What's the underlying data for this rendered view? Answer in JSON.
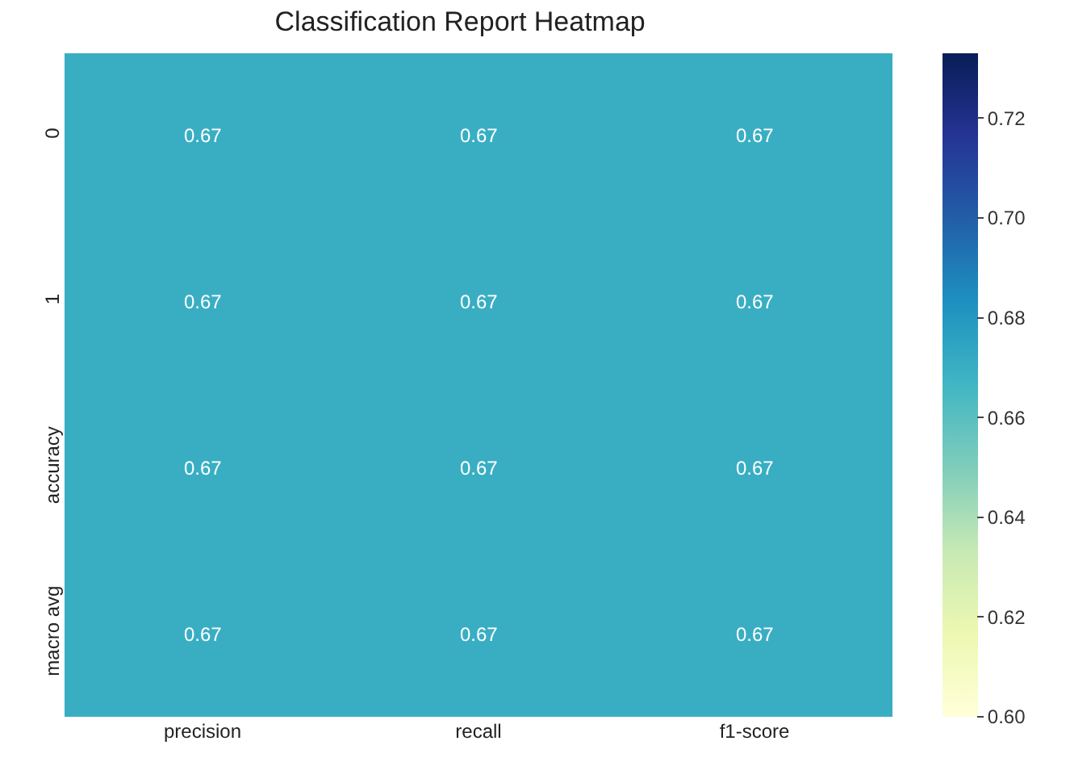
{
  "chart_data": {
    "type": "heatmap",
    "title": "Classification Report Heatmap",
    "categories": [
      "precision",
      "recall",
      "f1-score"
    ],
    "y_categories": [
      "0",
      "1",
      "accuracy",
      "macro avg"
    ],
    "cells": [
      [
        0.67,
        0.67,
        0.67
      ],
      [
        0.67,
        0.67,
        0.67
      ],
      [
        0.67,
        0.67,
        0.67
      ],
      [
        0.67,
        0.67,
        0.67
      ]
    ],
    "data_labels": true,
    "clim": [
      0.6,
      0.733
    ],
    "cticks": [
      {
        "value": 0.6,
        "label": "0.60"
      },
      0.62,
      0.64,
      0.66,
      0.68,
      {
        "value": 0.7,
        "label": "0.70"
      },
      0.72
    ]
  }
}
